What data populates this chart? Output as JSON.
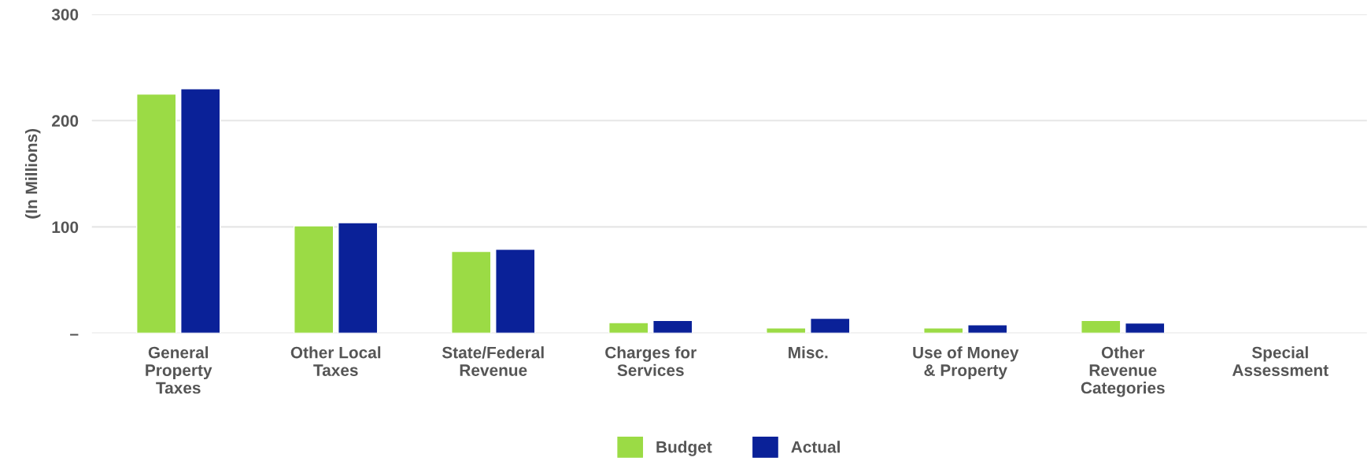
{
  "chart_data": {
    "type": "bar",
    "ylabel": "(In Millions)",
    "categories": [
      "General\nProperty\nTaxes",
      "Other Local\nTaxes",
      "State/Federal\nRevenue",
      "Charges for\nServices",
      "Misc.",
      "Use of Money\n& Property",
      "Other\nRevenue\nCategories",
      "Special\nAssessment"
    ],
    "series": [
      {
        "name": "Budget",
        "color": "#9bdb45",
        "values": [
          225,
          101,
          77,
          10,
          5,
          5,
          12,
          null
        ]
      },
      {
        "name": "Actual",
        "color": "#0a2198",
        "values": [
          230,
          104,
          79,
          12,
          14,
          8,
          9.5,
          null
        ]
      }
    ],
    "ylim": [
      0,
      300
    ],
    "yticks": [
      {
        "value": 0,
        "label": "–"
      },
      100,
      200,
      300
    ],
    "grid": "y",
    "legend": "bottom"
  }
}
